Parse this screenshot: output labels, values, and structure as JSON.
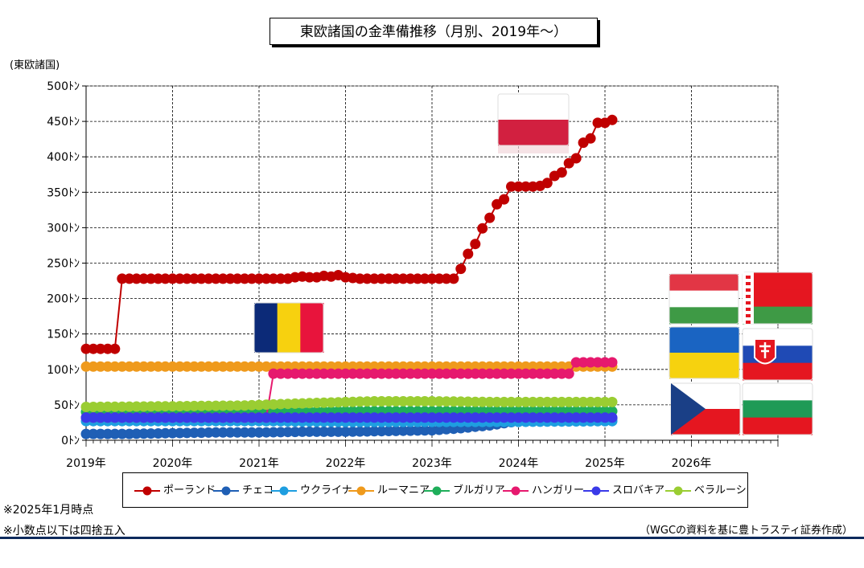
{
  "chart_data": {
    "type": "line",
    "title": "東欧諸国の金準備推移（月別、2019年～）",
    "ylabel": "(東欧諸国)",
    "y_tick_labels": [
      "0ﾄﾝ",
      "50ﾄﾝ",
      "100ﾄﾝ",
      "150ﾄﾝ",
      "200ﾄﾝ",
      "250ﾄﾝ",
      "300ﾄﾝ",
      "350ﾄﾝ",
      "400ﾄﾝ",
      "450ﾄﾝ",
      "500ﾄﾝ"
    ],
    "x_tick_labels": [
      "2019年",
      "2020年",
      "2021年",
      "2022年",
      "2023年",
      "2024年",
      "2025年",
      "2026年"
    ],
    "ylim": [
      0,
      500
    ],
    "xlim": [
      0,
      96
    ],
    "grid": true,
    "legend_position": "bottom",
    "series": [
      {
        "name": "ポーランド",
        "color": "#c00000",
        "points": [
          [
            0,
            129
          ],
          [
            1,
            129
          ],
          [
            2,
            129
          ],
          [
            3,
            129
          ],
          [
            4,
            129
          ],
          [
            5,
            228
          ],
          [
            6,
            228
          ],
          [
            7,
            228
          ],
          [
            8,
            228
          ],
          [
            9,
            228
          ],
          [
            10,
            228
          ],
          [
            11,
            228
          ],
          [
            12,
            228
          ],
          [
            13,
            228
          ],
          [
            14,
            228
          ],
          [
            15,
            228
          ],
          [
            16,
            228
          ],
          [
            17,
            228
          ],
          [
            18,
            228
          ],
          [
            19,
            228
          ],
          [
            20,
            228
          ],
          [
            21,
            228
          ],
          [
            22,
            228
          ],
          [
            23,
            228
          ],
          [
            24,
            228
          ],
          [
            25,
            228
          ],
          [
            26,
            228
          ],
          [
            27,
            228
          ],
          [
            28,
            228
          ],
          [
            29,
            230
          ],
          [
            30,
            231
          ],
          [
            31,
            230
          ],
          [
            32,
            230
          ],
          [
            33,
            232
          ],
          [
            34,
            231
          ],
          [
            35,
            233
          ],
          [
            36,
            230
          ],
          [
            37,
            229
          ],
          [
            38,
            228
          ],
          [
            39,
            228
          ],
          [
            40,
            228
          ],
          [
            41,
            228
          ],
          [
            42,
            228
          ],
          [
            43,
            228
          ],
          [
            44,
            228
          ],
          [
            45,
            228
          ],
          [
            46,
            228
          ],
          [
            47,
            228
          ],
          [
            48,
            228
          ],
          [
            49,
            228
          ],
          [
            50,
            228
          ],
          [
            51,
            228
          ],
          [
            52,
            242
          ],
          [
            53,
            263
          ],
          [
            54,
            277
          ],
          [
            55,
            299
          ],
          [
            56,
            314
          ],
          [
            57,
            333
          ],
          [
            58,
            340
          ],
          [
            59,
            358
          ],
          [
            60,
            358
          ],
          [
            61,
            358
          ],
          [
            62,
            358
          ],
          [
            63,
            359
          ],
          [
            64,
            363
          ],
          [
            65,
            373
          ],
          [
            66,
            378
          ],
          [
            67,
            391
          ],
          [
            68,
            398
          ],
          [
            69,
            420
          ],
          [
            70,
            426
          ],
          [
            71,
            448
          ],
          [
            72,
            448
          ],
          [
            73,
            452
          ]
        ]
      },
      {
        "name": "チェコ",
        "color": "#1f5fb5",
        "points": [
          [
            0,
            9
          ],
          [
            6,
            9
          ],
          [
            12,
            10
          ],
          [
            18,
            11
          ],
          [
            24,
            11
          ],
          [
            30,
            12
          ],
          [
            36,
            12
          ],
          [
            42,
            13
          ],
          [
            48,
            14
          ],
          [
            52,
            17
          ],
          [
            56,
            21
          ],
          [
            58,
            24
          ],
          [
            60,
            27
          ],
          [
            64,
            29
          ],
          [
            68,
            30
          ],
          [
            73,
            31
          ]
        ]
      },
      {
        "name": "ウクライナ",
        "color": "#1e9ee0",
        "points": [
          [
            0,
            27
          ],
          [
            12,
            27
          ],
          [
            24,
            27
          ],
          [
            36,
            26
          ],
          [
            48,
            26
          ],
          [
            60,
            26
          ],
          [
            73,
            27
          ]
        ]
      },
      {
        "name": "ルーマニア",
        "color": "#ef9a1c",
        "points": [
          [
            0,
            104
          ],
          [
            12,
            104
          ],
          [
            24,
            104
          ],
          [
            36,
            104
          ],
          [
            48,
            104
          ],
          [
            60,
            104
          ],
          [
            73,
            104
          ]
        ]
      },
      {
        "name": "ブルガリア",
        "color": "#1fae5a",
        "points": [
          [
            0,
            40
          ],
          [
            12,
            40
          ],
          [
            24,
            40
          ],
          [
            36,
            41
          ],
          [
            48,
            41
          ],
          [
            60,
            41
          ],
          [
            73,
            41
          ]
        ]
      },
      {
        "name": "ハンガリー",
        "color": "#e6196e",
        "points": [
          [
            0,
            32
          ],
          [
            25,
            32
          ],
          [
            26,
            94
          ],
          [
            36,
            94
          ],
          [
            48,
            94
          ],
          [
            60,
            94
          ],
          [
            67,
            94
          ],
          [
            68,
            110
          ],
          [
            73,
            110
          ]
        ]
      },
      {
        "name": "スロバキア",
        "color": "#3a3ae8",
        "points": [
          [
            0,
            32
          ],
          [
            12,
            32
          ],
          [
            24,
            32
          ],
          [
            36,
            32
          ],
          [
            48,
            32
          ],
          [
            60,
            32
          ],
          [
            73,
            32
          ]
        ]
      },
      {
        "name": "ベラルーシ",
        "color": "#9acd32",
        "points": [
          [
            0,
            47
          ],
          [
            12,
            48
          ],
          [
            22,
            49
          ],
          [
            27,
            51
          ],
          [
            30,
            52
          ],
          [
            33,
            53
          ],
          [
            36,
            54
          ],
          [
            40,
            55
          ],
          [
            48,
            55
          ],
          [
            56,
            54
          ],
          [
            64,
            54
          ],
          [
            73,
            54
          ]
        ]
      }
    ]
  },
  "notes": [
    "※2025年1月時点",
    "※小数点以下は四捨五入"
  ],
  "source": "（WGCの資料を基に豊トラスティ証券作成）",
  "flags": [
    "poland",
    "romania",
    "hungary",
    "belarus",
    "ukraine",
    "slovakia",
    "czech",
    "bulgaria"
  ]
}
